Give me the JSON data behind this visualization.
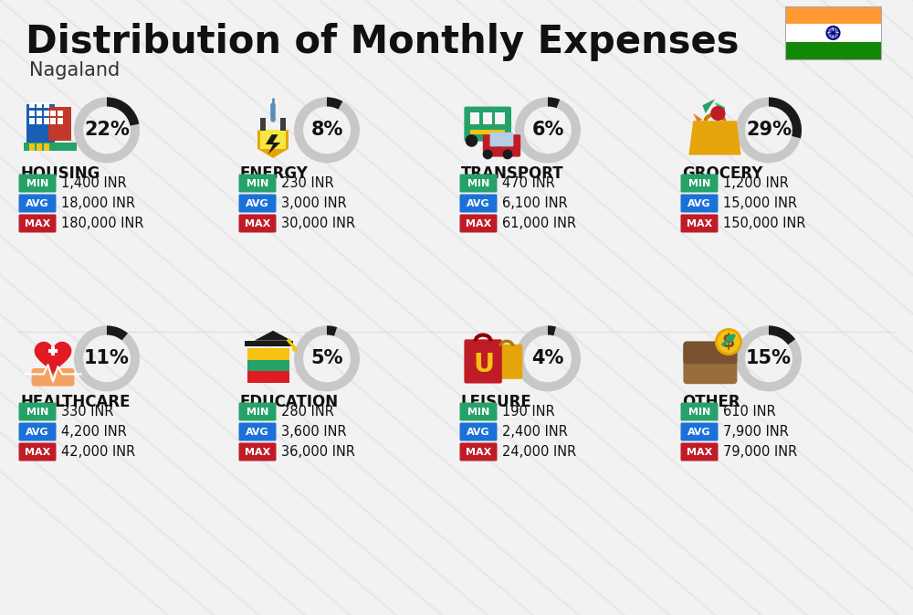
{
  "title": "Distribution of Monthly Expenses",
  "subtitle": "Nagaland",
  "background_color": "#f2f2f2",
  "categories": [
    {
      "name": "HOUSING",
      "pct": 22,
      "min_val": "1,400 INR",
      "avg_val": "18,000 INR",
      "max_val": "180,000 INR",
      "row": 0,
      "col": 0,
      "icon_color": "#1a5fb4"
    },
    {
      "name": "ENERGY",
      "pct": 8,
      "min_val": "230 INR",
      "avg_val": "3,000 INR",
      "max_val": "30,000 INR",
      "row": 0,
      "col": 1,
      "icon_color": "#f5c211"
    },
    {
      "name": "TRANSPORT",
      "pct": 6,
      "min_val": "470 INR",
      "avg_val": "6,100 INR",
      "max_val": "61,000 INR",
      "row": 0,
      "col": 2,
      "icon_color": "#26a269"
    },
    {
      "name": "GROCERY",
      "pct": 29,
      "min_val": "1,200 INR",
      "avg_val": "15,000 INR",
      "max_val": "150,000 INR",
      "row": 0,
      "col": 3,
      "icon_color": "#e5a50a"
    },
    {
      "name": "HEALTHCARE",
      "pct": 11,
      "min_val": "330 INR",
      "avg_val": "4,200 INR",
      "max_val": "42,000 INR",
      "row": 1,
      "col": 0,
      "icon_color": "#e01b24"
    },
    {
      "name": "EDUCATION",
      "pct": 5,
      "min_val": "280 INR",
      "avg_val": "3,600 INR",
      "max_val": "36,000 INR",
      "row": 1,
      "col": 1,
      "icon_color": "#26a269"
    },
    {
      "name": "LEISURE",
      "pct": 4,
      "min_val": "190 INR",
      "avg_val": "2,400 INR",
      "max_val": "24,000 INR",
      "row": 1,
      "col": 2,
      "icon_color": "#c01c28"
    },
    {
      "name": "OTHER",
      "pct": 15,
      "min_val": "610 INR",
      "avg_val": "7,900 INR",
      "max_val": "79,000 INR",
      "row": 1,
      "col": 3,
      "icon_color": "#9a6e3a"
    }
  ],
  "color_min": "#26a269",
  "color_avg": "#1c71d8",
  "color_max": "#c01c28",
  "color_donut_fill": "#1a1a1a",
  "color_donut_bg": "#c8c8c8",
  "title_fontsize": 30,
  "subtitle_fontsize": 15,
  "cat_fontsize": 12,
  "val_fontsize": 10.5,
  "pct_fontsize": 15,
  "flag_orange": "#FF9933",
  "flag_green": "#138808",
  "flag_chakra": "#000080",
  "stripe_color": "#cccccc",
  "stripe_alpha": 0.25
}
